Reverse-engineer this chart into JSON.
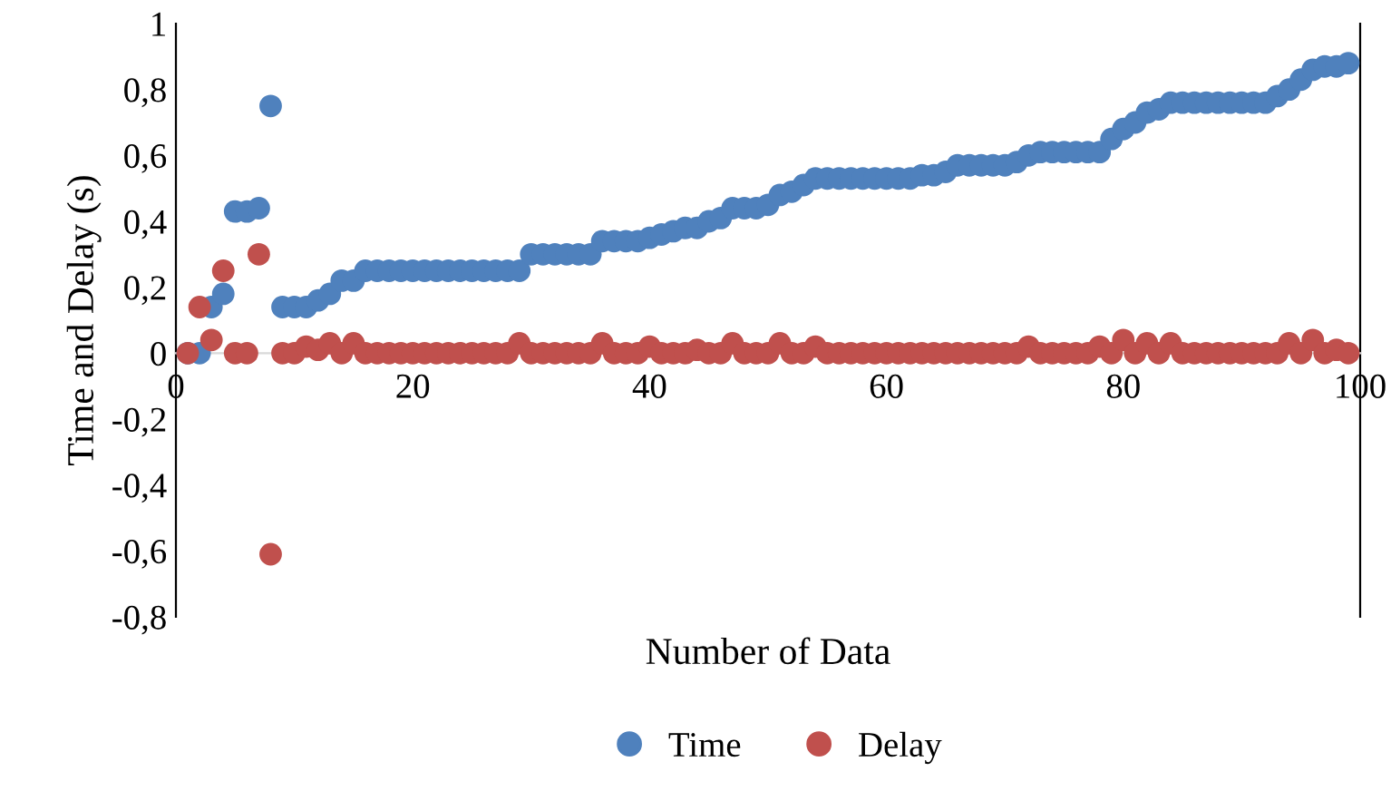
{
  "chart_data": {
    "type": "scatter",
    "xlabel": "Number of Data",
    "ylabel": "Time and Delay (s)",
    "x": [
      1,
      2,
      3,
      4,
      5,
      6,
      7,
      8,
      9,
      10,
      11,
      12,
      13,
      14,
      15,
      16,
      17,
      18,
      19,
      20,
      21,
      22,
      23,
      24,
      25,
      26,
      27,
      28,
      29,
      30,
      31,
      32,
      33,
      34,
      35,
      36,
      37,
      38,
      39,
      40,
      41,
      42,
      43,
      44,
      45,
      46,
      47,
      48,
      49,
      50,
      51,
      52,
      53,
      54,
      55,
      56,
      57,
      58,
      59,
      60,
      61,
      62,
      63,
      64,
      65,
      66,
      67,
      68,
      69,
      70,
      71,
      72,
      73,
      74,
      75,
      76,
      77,
      78,
      79,
      80,
      81,
      82,
      83,
      84,
      85,
      86,
      87,
      88,
      89,
      90,
      91,
      92,
      93,
      94,
      95,
      96,
      97,
      98,
      99
    ],
    "series": [
      {
        "name": "Time",
        "color": "#4f81bd",
        "values": [
          0,
          0,
          0.14,
          0.18,
          0.43,
          0.43,
          0.44,
          0.75,
          0.14,
          0.14,
          0.14,
          0.16,
          0.18,
          0.22,
          0.22,
          0.25,
          0.25,
          0.25,
          0.25,
          0.25,
          0.25,
          0.25,
          0.25,
          0.25,
          0.25,
          0.25,
          0.25,
          0.25,
          0.25,
          0.3,
          0.3,
          0.3,
          0.3,
          0.3,
          0.3,
          0.34,
          0.34,
          0.34,
          0.34,
          0.35,
          0.36,
          0.37,
          0.38,
          0.38,
          0.4,
          0.41,
          0.44,
          0.44,
          0.44,
          0.45,
          0.48,
          0.49,
          0.51,
          0.53,
          0.53,
          0.53,
          0.53,
          0.53,
          0.53,
          0.53,
          0.53,
          0.53,
          0.54,
          0.54,
          0.55,
          0.57,
          0.57,
          0.57,
          0.57,
          0.57,
          0.58,
          0.6,
          0.61,
          0.61,
          0.61,
          0.61,
          0.61,
          0.61,
          0.65,
          0.68,
          0.7,
          0.73,
          0.74,
          0.76,
          0.76,
          0.76,
          0.76,
          0.76,
          0.76,
          0.76,
          0.76,
          0.76,
          0.78,
          0.8,
          0.83,
          0.86,
          0.87,
          0.87,
          0.88
        ]
      },
      {
        "name": "Delay",
        "color": "#c0504d",
        "values": [
          0,
          0.14,
          0.04,
          0.25,
          0,
          0,
          0.3,
          -0.61,
          0,
          0,
          0.02,
          0.01,
          0.03,
          0,
          0.03,
          0,
          0,
          0,
          0,
          0,
          0,
          0,
          0,
          0,
          0,
          0,
          0,
          0,
          0.03,
          0,
          0,
          0,
          0,
          0,
          0,
          0.03,
          0,
          0,
          0,
          0.02,
          0,
          0,
          0,
          0.01,
          0,
          0,
          0.03,
          0,
          0,
          0,
          0.03,
          0,
          0,
          0.02,
          0,
          0,
          0,
          0,
          0,
          0,
          0,
          0,
          0,
          0,
          0,
          0,
          0,
          0,
          0,
          0,
          0,
          0.02,
          0,
          0,
          0,
          0,
          0,
          0.02,
          0,
          0.04,
          0,
          0.03,
          0,
          0.03,
          0,
          0,
          0,
          0,
          0,
          0,
          0,
          0,
          0,
          0.03,
          0,
          0.04,
          0,
          0.01,
          0
        ]
      }
    ],
    "xlim": [
      0,
      100
    ],
    "xticks": [
      0,
      20,
      40,
      60,
      80,
      100
    ],
    "ylim": [
      -0.8,
      1
    ],
    "yticks": [
      {
        "value": -0.8,
        "label": "-0,8"
      },
      {
        "value": -0.6,
        "label": "-0,6"
      },
      {
        "value": -0.4,
        "label": "-0,4"
      },
      {
        "value": -0.2,
        "label": "-0,2"
      },
      0,
      {
        "value": 0.2,
        "label": "0,2"
      },
      {
        "value": 0.4,
        "label": "0,4"
      },
      {
        "value": 0.6,
        "label": "0,6"
      },
      {
        "value": 0.8,
        "label": "0,8"
      },
      1
    ],
    "marker": "circle",
    "grid": false,
    "legend": "bottom"
  }
}
